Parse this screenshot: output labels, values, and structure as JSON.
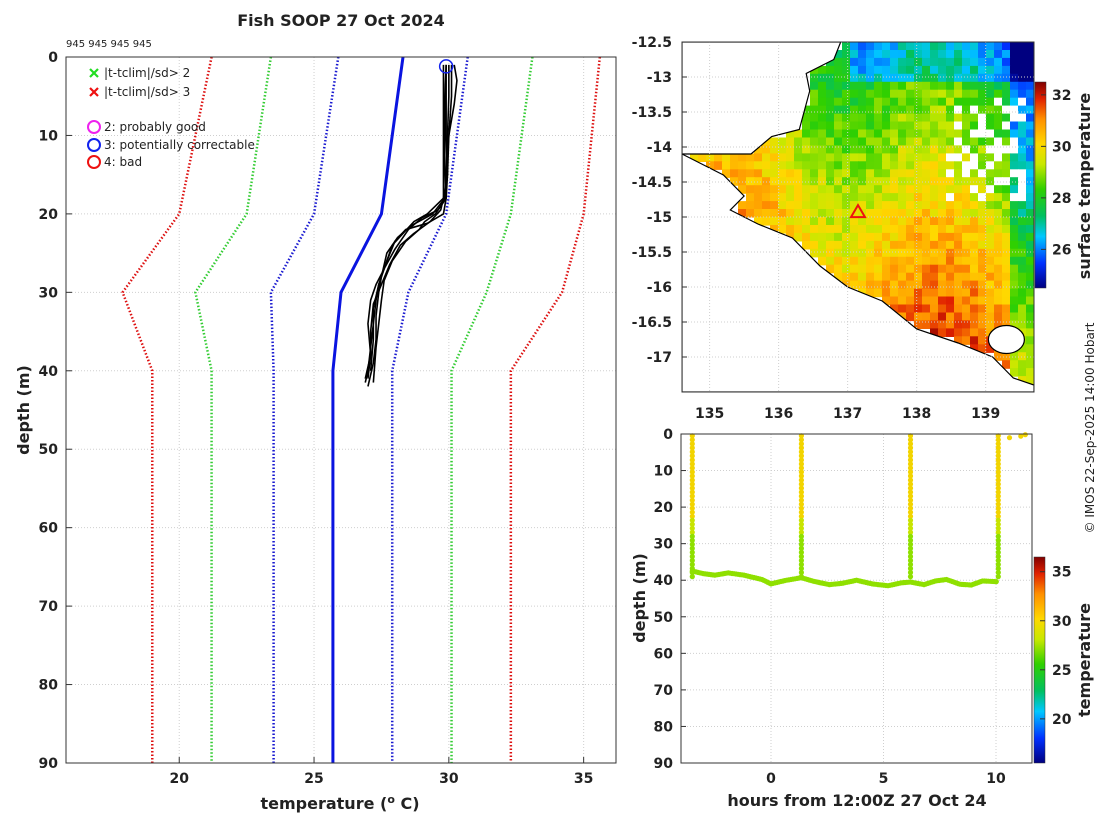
{
  "copyright": "© IMOS 22-Sep-2025 14:00 Hobart",
  "colors": {
    "clim_mean": "#0a14e0",
    "clim_1sd": "#1a1ad0",
    "clim_2sd": "#33cc33",
    "clim_3sd": "#dd1111",
    "profile": "#000000",
    "crossing": "#8fe000"
  },
  "chart_data": [
    {
      "id": "profile",
      "type": "line",
      "title": "Fish SOOP 27 Oct 2024",
      "ids_text": "945 945 945 945",
      "xlabel_text": "temperature (",
      "xlabel_sup": "o",
      "xlabel_end": " C)",
      "ylabel": "depth (m)",
      "xlim": [
        15.8,
        36.2
      ],
      "ylim": [
        0,
        90
      ],
      "xticks": [
        20,
        25,
        30,
        35
      ],
      "yticks": [
        0,
        10,
        20,
        30,
        40,
        50,
        60,
        70,
        80,
        90
      ],
      "legend": [
        {
          "symbol": "x",
          "color": "#22dd22",
          "label": "|t-tclim|/sd> 2"
        },
        {
          "symbol": "x",
          "color": "#ee1111",
          "label": "|t-tclim|/sd> 3"
        },
        {
          "symbol": "o",
          "color": "#ee22ee",
          "label": "2: probably good"
        },
        {
          "symbol": "o",
          "color": "#1122ee",
          "label": "3: potentially correctable"
        },
        {
          "symbol": "o",
          "color": "#ee1111",
          "label": "4: bad"
        }
      ],
      "clim_depths": [
        0,
        20,
        30,
        40,
        90
      ],
      "series": [
        {
          "name": "clim-3sd",
          "style": "dotted",
          "color": "#dd1111",
          "values": [
            21.2,
            20.0,
            17.9,
            19.0,
            19.0
          ]
        },
        {
          "name": "clim-2sd",
          "style": "dotted",
          "color": "#33cc33",
          "values": [
            23.4,
            22.5,
            20.6,
            21.2,
            21.2
          ]
        },
        {
          "name": "clim-1sd",
          "style": "dotted",
          "color": "#1a1ad0",
          "values": [
            25.9,
            25.0,
            23.4,
            23.5,
            23.5
          ]
        },
        {
          "name": "clim-mean",
          "style": "solid",
          "color": "#0a14e0",
          "values": [
            28.3,
            27.5,
            26.0,
            25.7,
            25.7
          ]
        },
        {
          "name": "clim+1sd",
          "style": "dotted",
          "color": "#1a1ad0",
          "values": [
            30.7,
            29.9,
            28.5,
            27.9,
            27.9
          ]
        },
        {
          "name": "clim+2sd",
          "style": "dotted",
          "color": "#33cc33",
          "values": [
            33.1,
            32.3,
            31.4,
            30.1,
            30.1
          ]
        },
        {
          "name": "clim+3sd",
          "style": "dotted",
          "color": "#dd1111",
          "values": [
            35.6,
            35.0,
            34.2,
            32.3,
            32.3
          ]
        }
      ],
      "profiles": [
        {
          "points": [
            [
              29.9,
              1
            ],
            [
              29.9,
              5
            ],
            [
              29.9,
              10
            ],
            [
              29.95,
              15
            ],
            [
              29.8,
              18
            ],
            [
              29.2,
              20
            ],
            [
              28.7,
              21
            ],
            [
              28.3,
              22.5
            ],
            [
              27.9,
              24
            ],
            [
              27.6,
              27
            ],
            [
              27.4,
              29
            ],
            [
              27.3,
              31
            ],
            [
              27.2,
              34
            ],
            [
              27.1,
              37
            ],
            [
              27.0,
              40
            ],
            [
              26.9,
              41.5
            ]
          ]
        },
        {
          "points": [
            [
              30.0,
              1
            ],
            [
              30.0,
              5
            ],
            [
              29.95,
              10
            ],
            [
              29.9,
              15
            ],
            [
              29.85,
              18
            ],
            [
              29.4,
              20
            ],
            [
              28.6,
              21.5
            ],
            [
              28.1,
              23
            ],
            [
              27.7,
              25
            ],
            [
              27.5,
              28
            ],
            [
              27.4,
              30
            ],
            [
              27.3,
              33
            ],
            [
              27.3,
              36
            ],
            [
              27.2,
              39
            ],
            [
              27.0,
              42
            ]
          ]
        },
        {
          "points": [
            [
              29.9,
              1
            ],
            [
              29.85,
              5
            ],
            [
              29.85,
              10
            ],
            [
              29.85,
              15
            ],
            [
              29.9,
              18
            ],
            [
              29.6,
              19.5
            ],
            [
              29.0,
              20.5
            ],
            [
              28.5,
              22
            ],
            [
              28.0,
              24.5
            ],
            [
              27.6,
              27
            ],
            [
              27.3,
              29
            ],
            [
              27.1,
              31
            ],
            [
              27.0,
              34
            ],
            [
              27.1,
              38
            ],
            [
              27.0,
              41
            ]
          ]
        },
        {
          "points": [
            [
              30.1,
              1
            ],
            [
              30.1,
              5
            ],
            [
              30.0,
              10
            ],
            [
              29.9,
              15
            ],
            [
              29.9,
              18
            ],
            [
              29.5,
              20
            ],
            [
              29.1,
              21
            ],
            [
              28.9,
              22
            ],
            [
              28.4,
              23.5
            ],
            [
              27.9,
              26
            ],
            [
              27.6,
              28.5
            ],
            [
              27.5,
              31
            ],
            [
              27.4,
              34
            ],
            [
              27.3,
              37
            ],
            [
              27.2,
              41.5
            ]
          ]
        },
        {
          "points": [
            [
              29.8,
              1
            ],
            [
              29.8,
              5
            ],
            [
              29.8,
              10
            ],
            [
              29.8,
              15
            ],
            [
              29.8,
              18
            ],
            [
              29.7,
              19.5
            ],
            [
              29.3,
              21
            ],
            [
              28.7,
              22.5
            ],
            [
              28.2,
              24
            ],
            [
              27.8,
              26.5
            ],
            [
              27.5,
              29
            ],
            [
              27.2,
              31.5
            ],
            [
              27.1,
              35
            ],
            [
              27.1,
              38
            ],
            [
              26.9,
              41
            ]
          ]
        },
        {
          "points": [
            [
              30.2,
              1
            ],
            [
              30.3,
              3
            ],
            [
              30.2,
              6
            ],
            [
              30.0,
              10
            ],
            [
              29.95,
              15
            ],
            [
              29.9,
              18
            ],
            [
              29.8,
              20
            ],
            [
              29.2,
              21.2
            ],
            [
              28.4,
              22
            ],
            [
              28.0,
              23.5
            ],
            [
              27.7,
              26
            ],
            [
              27.4,
              29
            ],
            [
              27.2,
              32
            ],
            [
              27.2,
              36
            ],
            [
              27.1,
              40
            ]
          ]
        }
      ],
      "flag_marker": {
        "x": 29.9,
        "y": 1.2,
        "color": "#1122ee"
      }
    },
    {
      "id": "map",
      "type": "heatmap",
      "xlim": [
        134.6,
        139.7
      ],
      "ylim": [
        -17.5,
        -12.5
      ],
      "xticks": [
        135,
        136,
        137,
        138,
        139
      ],
      "yticks": [
        -12.5,
        -13,
        -13.5,
        -14,
        -14.5,
        -15,
        -15.5,
        -16,
        -16.5,
        -17
      ],
      "colorbar": {
        "label": "surface temperature",
        "range": [
          24.5,
          32.5
        ],
        "ticks": [
          26,
          28,
          30,
          32
        ]
      },
      "station": {
        "lon": 137.15,
        "lat": -14.93,
        "marker": "triangle",
        "color": "#ee1111"
      }
    },
    {
      "id": "timeseries",
      "type": "scatter",
      "xlabel": "hours from 12:00Z 27 Oct 24",
      "ylabel": "depth (m)",
      "xlim": [
        -4.0,
        11.6
      ],
      "ylim": [
        0,
        90
      ],
      "xticks": [
        0,
        5,
        10
      ],
      "yticks": [
        0,
        10,
        20,
        30,
        40,
        50,
        60,
        70,
        80,
        90
      ],
      "colorbar": {
        "label": "temperature",
        "range": [
          15.5,
          36.5
        ],
        "ticks": [
          20,
          25,
          30,
          35
        ]
      },
      "casts": [
        -3.5,
        1.35,
        6.2,
        10.1
      ],
      "bottom_depth": [
        [
          -3.5,
          37.5
        ],
        [
          -3.0,
          38.2
        ],
        [
          -2.5,
          38.6
        ],
        [
          -1.9,
          38.0
        ],
        [
          -1.2,
          38.6
        ],
        [
          -0.4,
          39.8
        ],
        [
          0.0,
          41.0
        ],
        [
          0.6,
          40.1
        ],
        [
          1.35,
          39.3
        ],
        [
          1.9,
          40.3
        ],
        [
          2.6,
          41.2
        ],
        [
          3.2,
          40.8
        ],
        [
          3.8,
          40.0
        ],
        [
          4.5,
          41.0
        ],
        [
          5.2,
          41.5
        ],
        [
          5.8,
          40.7
        ],
        [
          6.2,
          40.5
        ],
        [
          6.8,
          41.2
        ],
        [
          7.3,
          40.2
        ],
        [
          7.8,
          39.8
        ],
        [
          8.4,
          41.1
        ],
        [
          8.9,
          41.3
        ],
        [
          9.4,
          40.2
        ],
        [
          10.1,
          40.4
        ]
      ],
      "surface_points": [
        [
          10.6,
          1.0
        ],
        [
          11.1,
          0.6
        ],
        [
          11.3,
          0.2
        ]
      ]
    }
  ]
}
